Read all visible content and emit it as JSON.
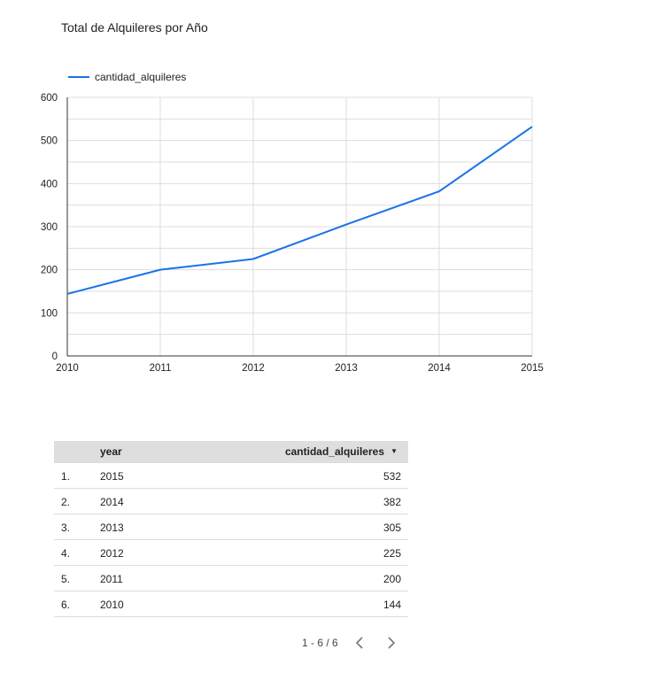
{
  "title": "Total de Alquileres por Año",
  "legend_label": "cantidad_alquileres",
  "accent_color": "#1a73e8",
  "chart_data": {
    "type": "line",
    "title": "Total de Alquileres por Año",
    "x": [
      2010,
      2011,
      2012,
      2013,
      2014,
      2015
    ],
    "series": [
      {
        "name": "cantidad_alquileres",
        "values": [
          144,
          200,
          225,
          305,
          382,
          532
        ]
      }
    ],
    "xlim": [
      2010,
      2015
    ],
    "ylim": [
      0,
      600
    ],
    "y_ticks": [
      0,
      100,
      200,
      300,
      400,
      500,
      600
    ],
    "x_ticks": [
      "2010",
      "2011",
      "2012",
      "2013",
      "2014",
      "2015"
    ],
    "grid": true,
    "legend_position": "top-left"
  },
  "table": {
    "columns": [
      "year",
      "cantidad_alquileres"
    ],
    "sort_icon": "sort-desc-icon",
    "rows": [
      {
        "idx": "1.",
        "year": "2015",
        "value": "532"
      },
      {
        "idx": "2.",
        "year": "2014",
        "value": "382"
      },
      {
        "idx": "3.",
        "year": "2013",
        "value": "305"
      },
      {
        "idx": "4.",
        "year": "2012",
        "value": "225"
      },
      {
        "idx": "5.",
        "year": "2011",
        "value": "200"
      },
      {
        "idx": "6.",
        "year": "2010",
        "value": "144"
      }
    ]
  },
  "pager": {
    "label": "1 - 6 / 6",
    "prev_icon": "chevron-left-icon",
    "next_icon": "chevron-right-icon"
  }
}
